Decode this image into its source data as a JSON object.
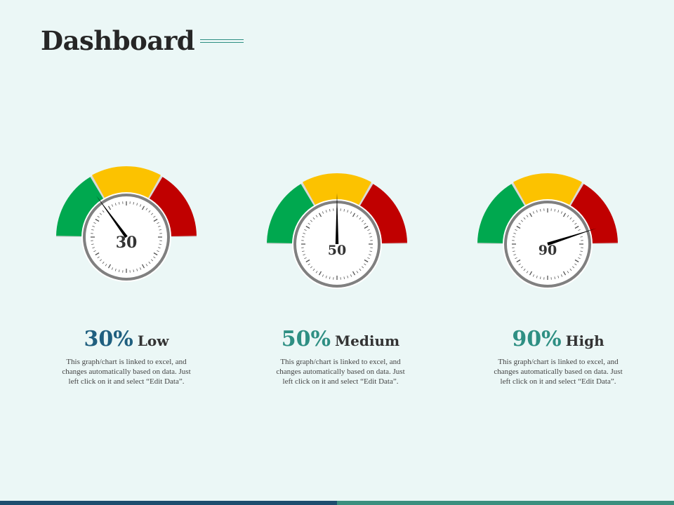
{
  "title": "Dashboard",
  "colors": {
    "green": "#00a84f",
    "yellow": "#fcc200",
    "red": "#c00000",
    "track": "#d9d9d9",
    "ring": "#808080",
    "needle": "#000000",
    "pct_text_blue": "#1f5f7f",
    "pct_text_teal": "#2e8f83"
  },
  "chart_data": [
    {
      "type": "gauge",
      "value": 30,
      "range": [
        0,
        100
      ],
      "bands": [
        "green",
        "yellow",
        "red"
      ],
      "center_label": "30",
      "percent_label": "30%",
      "level_label": "Low",
      "description": "This graph/chart is linked to excel, and changes automatically based on data. Just left click on it and select “Edit Data”."
    },
    {
      "type": "gauge",
      "value": 50,
      "range": [
        0,
        100
      ],
      "bands": [
        "green",
        "yellow",
        "red"
      ],
      "center_label": "50",
      "percent_label": "50%",
      "level_label": "Medium",
      "description": "This graph/chart is linked to excel, and changes automatically based on data. Just left click on it and select “Edit Data”."
    },
    {
      "type": "gauge",
      "value": 90,
      "range": [
        0,
        100
      ],
      "bands": [
        "green",
        "yellow",
        "red"
      ],
      "center_label": "90",
      "percent_label": "90%",
      "level_label": "High",
      "description": "This graph/chart is linked to excel, and changes automatically based on data. Just left click on it and select “Edit Data”."
    }
  ]
}
